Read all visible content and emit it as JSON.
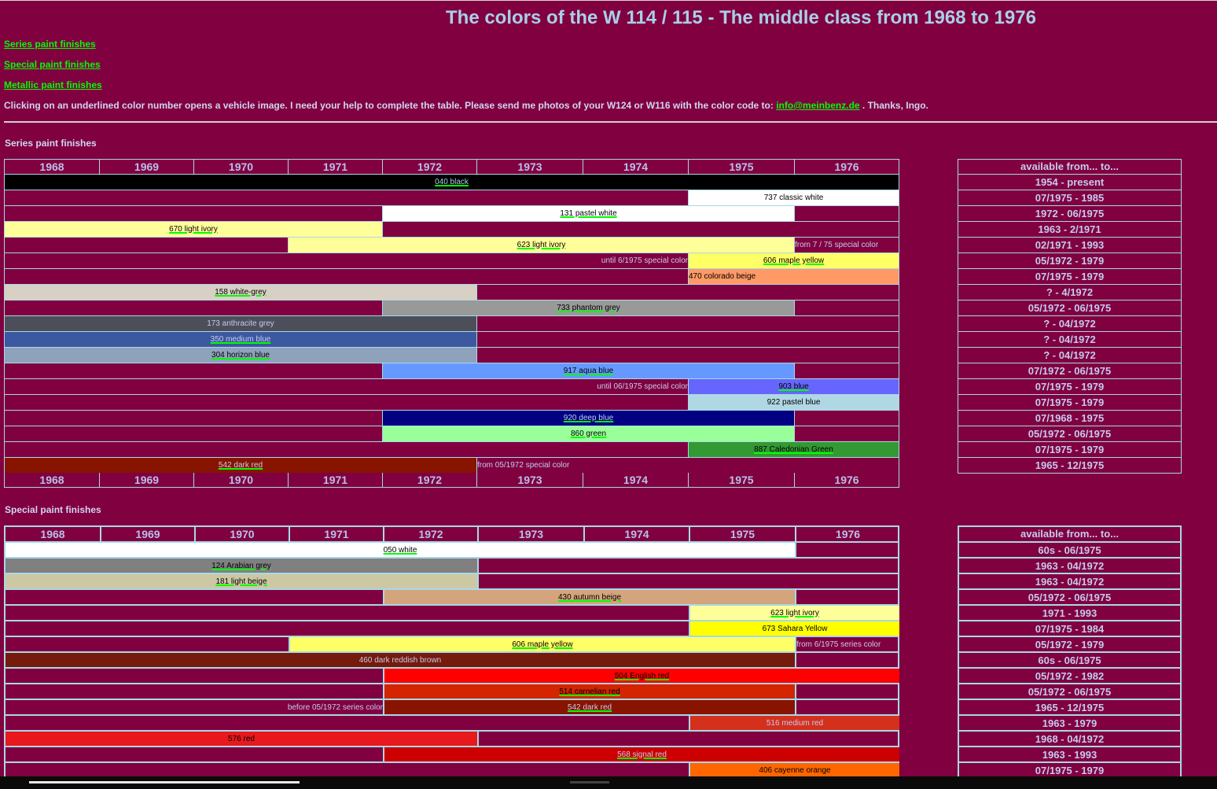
{
  "title": "The colors of the W 114 / 115 - The middle class from 1968 to 1976",
  "nav": [
    "Series paint finishes",
    "Special paint finishes",
    "Metallic paint finishes"
  ],
  "info": {
    "text": "Clicking on an underlined color number opens a vehicle image. I need your help to complete the table. Please send me photos of your W124 or W116 with the color code to: ",
    "email": "info@meinbenz.de",
    "suffix": " . Thanks, Ingo."
  },
  "years": [
    "1968",
    "1969",
    "1970",
    "1971",
    "1972",
    "1973",
    "1974",
    "1975",
    "1976"
  ],
  "avail_header": "available from... to...",
  "series": {
    "heading": "Series paint finishes",
    "rows": [
      {
        "label": "040 black",
        "from": 1968,
        "to": 1977,
        "bg": "#000000",
        "fg": "#a8d0e8",
        "link": true,
        "avail": "1954 - present"
      },
      {
        "label": "737 classic white",
        "from": 1975,
        "to": 1977,
        "bg": "#ffffff",
        "fg": "#000000",
        "link": false,
        "avail": "07/1975 - 1985"
      },
      {
        "label": "131 pastel white",
        "from": 1972,
        "to": 1976,
        "bg": "#ffffff",
        "fg": "#000000",
        "link": true,
        "avail": "1972 - 06/1975"
      },
      {
        "label": "670 light ivory",
        "from": 1968,
        "to": 1972,
        "bg": "#ffff99",
        "fg": "#000000",
        "link": true,
        "avail": "1963 - 2/1971"
      },
      {
        "label": "623 light ivory",
        "from": 1971,
        "to": 1976,
        "bg": "#ffff99",
        "fg": "#000000",
        "link": true,
        "note": "from 7 / 75 special color",
        "note_side": "right",
        "avail": "02/1971 - 1993"
      },
      {
        "label": "606 maple yellow",
        "from": 1975,
        "to": 1977,
        "bg": "#ffff66",
        "fg": "#000000",
        "link": true,
        "note": "until 6/1975 special color",
        "note_side": "left",
        "avail": "05/1972 - 1979"
      },
      {
        "label": "470 colorado beige",
        "from": 1975,
        "to": 1977,
        "bg": "#ff9966",
        "fg": "#000000",
        "link": false,
        "align": "left",
        "avail": "07/1975 - 1979"
      },
      {
        "label": "158 white-grey",
        "from": 1968,
        "to": 1973,
        "bg": "#d8d0c4",
        "fg": "#000000",
        "link": true,
        "avail": "? - 4/1972"
      },
      {
        "label": "733 phantom grey",
        "from": 1972,
        "to": 1976,
        "bg": "#999999",
        "fg": "#000000",
        "link": true,
        "avail": "05/1972 - 06/1975"
      },
      {
        "label": "173 anthracite grey",
        "from": 1968,
        "to": 1973,
        "bg": "#4c4f5a",
        "fg": "#c4cbee",
        "link": false,
        "avail": "? - 04/1972"
      },
      {
        "label": "350 medium blue",
        "from": 1968,
        "to": 1973,
        "bg": "#3c58a0",
        "fg": "#c4cbee",
        "link": true,
        "avail": "? - 04/1972"
      },
      {
        "label": "304 horizon blue",
        "from": 1968,
        "to": 1973,
        "bg": "#8ea2bc",
        "fg": "#000000",
        "link": true,
        "avail": "? - 04/1972"
      },
      {
        "label": "917 aqua blue",
        "from": 1972,
        "to": 1976,
        "bg": "#6699ff",
        "fg": "#000000",
        "link": true,
        "avail": "07/1972 - 06/1975"
      },
      {
        "label": "903 blue",
        "from": 1975,
        "to": 1977,
        "bg": "#6666ff",
        "fg": "#000000",
        "link": true,
        "note": "until 06/1975 special color",
        "note_side": "left",
        "avail": "07/1975 - 1979"
      },
      {
        "label": "922 pastel blue",
        "from": 1975,
        "to": 1977,
        "bg": "#b0d8e4",
        "fg": "#000000",
        "link": false,
        "avail": "07/1975 - 1979"
      },
      {
        "label": "920 deep blue",
        "from": 1972,
        "to": 1976,
        "bg": "#000080",
        "fg": "#c4cbee",
        "link": true,
        "avail": "07/1968 - 1975"
      },
      {
        "label": "860 green",
        "from": 1972,
        "to": 1976,
        "bg": "#99ff99",
        "fg": "#000000",
        "link": true,
        "avail": "05/1972 - 06/1975"
      },
      {
        "label": "887 Caledonian Green",
        "from": 1975,
        "to": 1977,
        "bg": "#339933",
        "fg": "#000000",
        "link": true,
        "avail": "07/1975 - 1979"
      },
      {
        "label": "542 dark red",
        "from": 1968,
        "to": 1973,
        "bg": "#881400",
        "fg": "#c4cbee",
        "link": true,
        "note": "from 05/1972 special color",
        "note_side": "right",
        "avail": "1965 - 12/1975"
      }
    ]
  },
  "special": {
    "heading": "Special paint finishes",
    "rows": [
      {
        "label": "050 white",
        "from": 1968,
        "to": 1976,
        "bg": "#ffffff",
        "fg": "#000000",
        "link": true,
        "avail": "60s - 06/1975"
      },
      {
        "label": "124 Arabian grey",
        "from": 1968,
        "to": 1973,
        "bg": "#808080",
        "fg": "#000000",
        "link": true,
        "avail": "1963 - 04/1972"
      },
      {
        "label": "181 light beige",
        "from": 1968,
        "to": 1973,
        "bg": "#ccc8a4",
        "fg": "#000000",
        "link": true,
        "avail": "1963 - 04/1972"
      },
      {
        "label": "430 autumn beige",
        "from": 1972,
        "to": 1976,
        "bg": "#d4a47c",
        "fg": "#000000",
        "link": true,
        "avail": "05/1972 - 06/1975"
      },
      {
        "label": "623 light ivory",
        "from": 1975,
        "to": 1977,
        "bg": "#ffff99",
        "fg": "#000000",
        "link": true,
        "avail": "1971 - 1993"
      },
      {
        "label": "673 Sahara Yellow",
        "from": 1975,
        "to": 1977,
        "bg": "#ffff00",
        "fg": "#000000",
        "link": false,
        "avail": "07/1975 - 1984"
      },
      {
        "label": "606 maple yellow",
        "from": 1971,
        "to": 1976,
        "bg": "#ffff66",
        "fg": "#000000",
        "link": true,
        "note": "from 6/1975 series color",
        "note_side": "right",
        "avail": "05/1972 - 1979"
      },
      {
        "label": "460 dark reddish brown",
        "from": 1968,
        "to": 1976,
        "bg": "#761a0c",
        "fg": "#c4cbee",
        "link": false,
        "avail": "60s - 06/1975"
      },
      {
        "label": "504 English red",
        "from": 1972,
        "to": 1977,
        "bg": "#ff0000",
        "fg": "#000000",
        "link": true,
        "avail": "05/1972 - 1982"
      },
      {
        "label": "514 carnelian red",
        "from": 1972,
        "to": 1976,
        "bg": "#d42400",
        "fg": "#000000",
        "link": true,
        "avail": "05/1972 - 06/1975"
      },
      {
        "label": "542 dark red",
        "from": 1972,
        "to": 1976,
        "bg": "#881400",
        "fg": "#c4cbee",
        "link": true,
        "note": "before 05/1972 series color",
        "note_side": "left",
        "avail": "1965 - 12/1975"
      },
      {
        "label": "516 medium red",
        "from": 1975,
        "to": 1977,
        "bg": "#d4301c",
        "fg": "#c4cbee",
        "link": false,
        "avail": "1963 - 1979"
      },
      {
        "label": "576 red",
        "from": 1968,
        "to": 1973,
        "bg": "#e8181c",
        "fg": "#000000",
        "link": false,
        "avail": "1968 - 04/1972"
      },
      {
        "label": "568 signal red",
        "from": 1972,
        "to": 1977,
        "bg": "#cc0000",
        "fg": "#c4cbee",
        "link": true,
        "avail": "1963 - 1993"
      },
      {
        "label": "406 cayenne orange",
        "from": 1975,
        "to": 1977,
        "bg": "#ff6600",
        "fg": "#000000",
        "link": false,
        "avail": "07/1975 - 1979"
      }
    ]
  }
}
